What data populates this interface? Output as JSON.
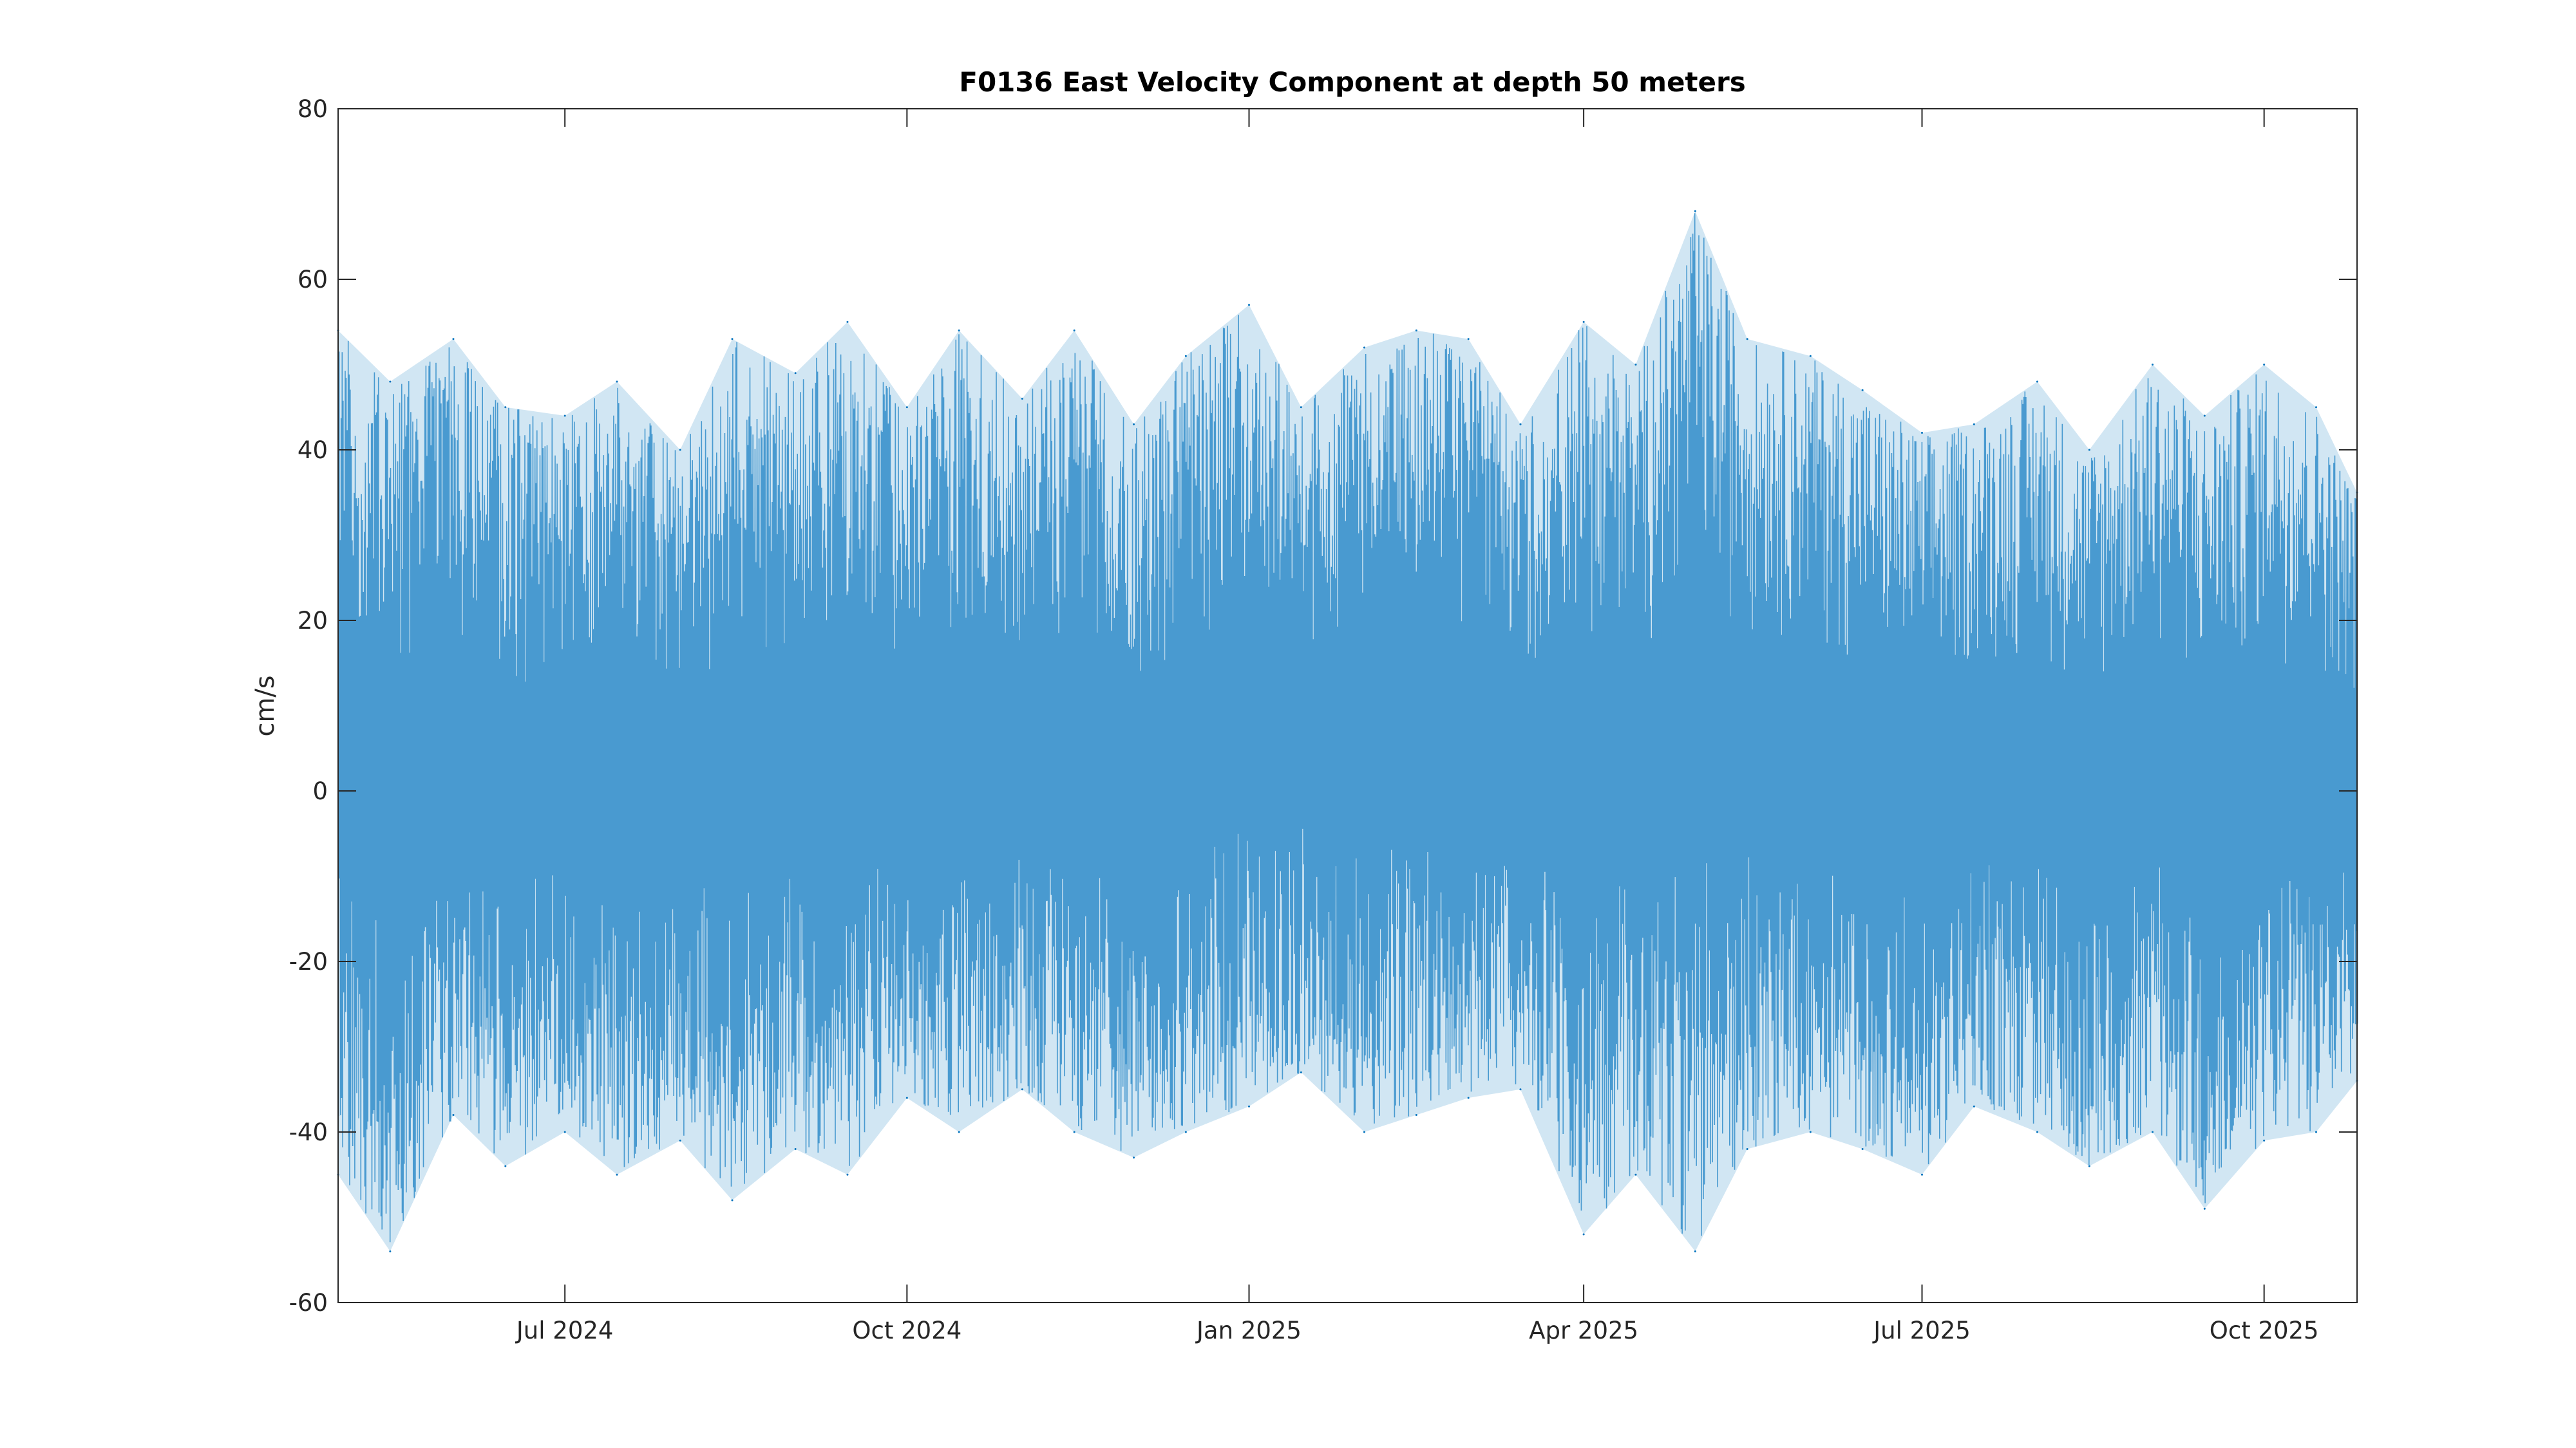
{
  "chart_data": {
    "type": "line",
    "title": "F0136 East Velocity Component at depth 50 meters",
    "xlabel": "",
    "ylabel": "cm/s",
    "ylim": [
      -60,
      80
    ],
    "xlim": [
      "2024-05-01",
      "2025-10-26"
    ],
    "yticks": [
      -60,
      -40,
      -20,
      0,
      20,
      40,
      60,
      80
    ],
    "xticks": [
      {
        "date": "2024-07-01",
        "label": "Jul 2024"
      },
      {
        "date": "2024-10-01",
        "label": "Oct 2024"
      },
      {
        "date": "2025-01-01",
        "label": "Jan 2025"
      },
      {
        "date": "2025-04-01",
        "label": "Apr 2025"
      },
      {
        "date": "2025-07-01",
        "label": "Jul 2025"
      },
      {
        "date": "2025-10-01",
        "label": "Oct 2025"
      }
    ],
    "grid": false,
    "series_color": "#0072BD",
    "series": [
      {
        "x": [
          "2024-05-01",
          "2024-05-15",
          "2024-06-01",
          "2024-06-15",
          "2024-07-01",
          "2024-07-15",
          "2024-08-01",
          "2024-08-15",
          "2024-09-01",
          "2024-09-15",
          "2024-10-01",
          "2024-10-15",
          "2024-11-01",
          "2024-11-15",
          "2024-12-01",
          "2024-12-15",
          "2025-01-01",
          "2025-01-15",
          "2025-02-01",
          "2025-02-15",
          "2025-03-01",
          "2025-03-15",
          "2025-04-01",
          "2025-04-15",
          "2025-05-01",
          "2025-05-15",
          "2025-06-01",
          "2025-06-15",
          "2025-07-01",
          "2025-07-15",
          "2025-08-01",
          "2025-08-15",
          "2025-09-01",
          "2025-09-15",
          "2025-10-01",
          "2025-10-15",
          "2025-10-26"
        ],
        "max": [
          54,
          48,
          53,
          45,
          44,
          48,
          40,
          53,
          49,
          55,
          45,
          54,
          46,
          54,
          43,
          51,
          57,
          45,
          52,
          54,
          53,
          43,
          55,
          50,
          68,
          53,
          51,
          47,
          42,
          43,
          48,
          40,
          50,
          44,
          50,
          45,
          35
        ],
        "min": [
          -45,
          -54,
          -38,
          -44,
          -40,
          -45,
          -41,
          -48,
          -42,
          -45,
          -36,
          -40,
          -35,
          -40,
          -43,
          -40,
          -37,
          -33,
          -40,
          -38,
          -36,
          -35,
          -52,
          -45,
          -54,
          -42,
          -40,
          -42,
          -45,
          -37,
          -40,
          -44,
          -40,
          -49,
          -41,
          -40,
          -34
        ]
      }
    ]
  }
}
